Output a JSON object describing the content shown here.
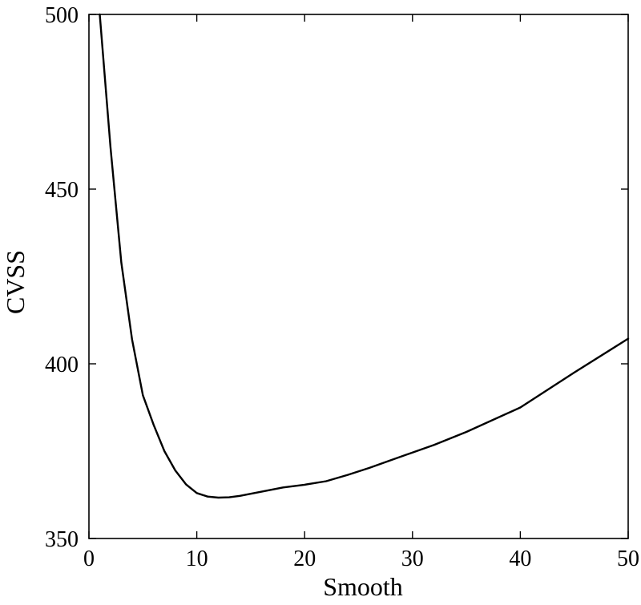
{
  "chart_data": {
    "type": "line",
    "title": "",
    "xlabel": "Smooth",
    "ylabel": "CVSS",
    "xlim": [
      0,
      50
    ],
    "ylim": [
      350,
      500
    ],
    "xticks": [
      0,
      10,
      20,
      30,
      40,
      50
    ],
    "yticks": [
      350,
      400,
      450,
      500
    ],
    "xtick_labels": [
      "0",
      "10",
      "20",
      "30",
      "40",
      "50"
    ],
    "ytick_labels": [
      "350",
      "400",
      "450",
      "500"
    ],
    "grid": false,
    "legend": "none",
    "series": [
      {
        "color": "#000000",
        "x": [
          1,
          2,
          3,
          4,
          5,
          6,
          7,
          8,
          9,
          10,
          11,
          12,
          13,
          14,
          16,
          18,
          20,
          22,
          24,
          26,
          28,
          30,
          32,
          35,
          40,
          45,
          50
        ],
        "y": [
          500,
          462,
          429,
          407,
          391,
          382.5,
          375,
          369.5,
          365.5,
          363,
          362,
          361.7,
          361.8,
          362.2,
          363.4,
          364.6,
          365.4,
          366.4,
          368.2,
          370.2,
          372.4,
          374.6,
          376.8,
          380.5,
          387.5,
          397.5,
          407.2
        ]
      }
    ]
  }
}
